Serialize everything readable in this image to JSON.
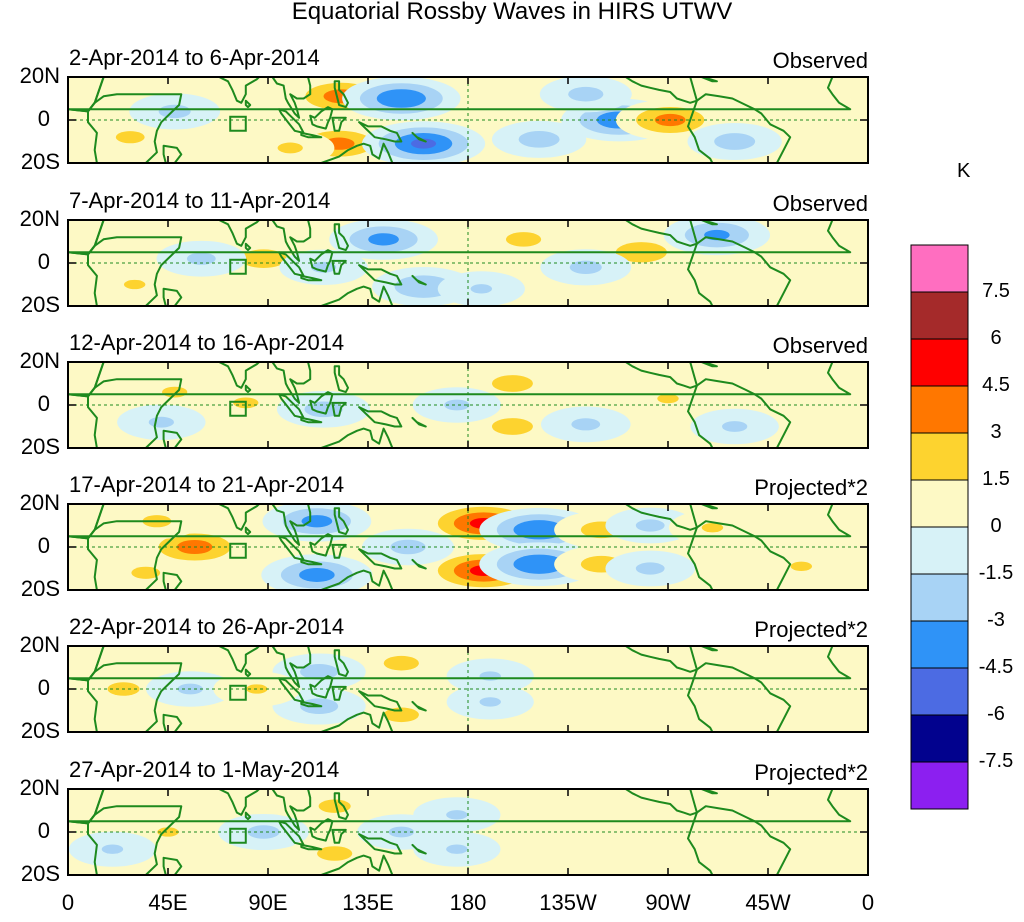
{
  "chart_data": {
    "type": "heatmap",
    "title": "Equatorial Rossby Waves in HIRS UTWV",
    "colorbar_unit": "K",
    "colorbar_levels": [
      "7.5",
      "6",
      "4.5",
      "3",
      "1.5",
      "0",
      "-1.5",
      "-3",
      "-4.5",
      "-6",
      "-7.5"
    ],
    "colorbar_colors": [
      "#ff6ec0",
      "#a52a2a",
      "#ff0000",
      "#ff7700",
      "#fdd32f",
      "#fdf9c5",
      "#d7f2f7",
      "#a8d3f5",
      "#2f93f7",
      "#4c6be3",
      "#02028e",
      "#8c1ff0"
    ],
    "lat_ticks": [
      "20N",
      "0",
      "20S"
    ],
    "lon_ticks": [
      "0",
      "45E",
      "90E",
      "135E",
      "180",
      "135W",
      "90W",
      "45W",
      "0"
    ],
    "lat_range": [
      -20,
      20
    ],
    "lon_range": [
      0,
      360
    ],
    "panels": [
      {
        "period": "2-Apr-2014 to 6-Apr-2014",
        "label": "Observed",
        "anomalies": [
          {
            "lon": 123,
            "lat": 11,
            "value": 3.6
          },
          {
            "lon": 122,
            "lat": -11,
            "value": 3.4
          },
          {
            "lon": 150,
            "lat": 10,
            "value": -4.2
          },
          {
            "lon": 160,
            "lat": -11,
            "value": -4.6
          },
          {
            "lon": 248,
            "lat": 0,
            "value": -4.0
          },
          {
            "lon": 271,
            "lat": 0,
            "value": 3.4
          },
          {
            "lon": 28,
            "lat": -8,
            "value": 1.8
          },
          {
            "lon": 100,
            "lat": -13,
            "value": 1.7
          },
          {
            "lon": 212,
            "lat": -9,
            "value": -2.2
          },
          {
            "lon": 233,
            "lat": 12,
            "value": -2.0
          },
          {
            "lon": 300,
            "lat": -10,
            "value": -2.2
          },
          {
            "lon": 48,
            "lat": 4,
            "value": -1.9
          }
        ]
      },
      {
        "period": "7-Apr-2014 to 11-Apr-2014",
        "label": "Observed",
        "anomalies": [
          {
            "lon": 88,
            "lat": 2,
            "value": 2.4
          },
          {
            "lon": 142,
            "lat": 11,
            "value": -3.4
          },
          {
            "lon": 160,
            "lat": -11,
            "value": -2.9
          },
          {
            "lon": 205,
            "lat": 11,
            "value": 2.0
          },
          {
            "lon": 258,
            "lat": 5,
            "value": 2.6
          },
          {
            "lon": 292,
            "lat": 13,
            "value": -3.2
          },
          {
            "lon": 60,
            "lat": 2,
            "value": -1.8
          },
          {
            "lon": 233,
            "lat": -2,
            "value": -1.9
          },
          {
            "lon": 30,
            "lat": -10,
            "value": 1.6
          },
          {
            "lon": 115,
            "lat": -2,
            "value": -1.7
          },
          {
            "lon": 186,
            "lat": -12,
            "value": -1.6
          }
        ]
      },
      {
        "period": "12-Apr-2014 to 16-Apr-2014",
        "label": "Observed",
        "anomalies": [
          {
            "lon": 80,
            "lat": 1,
            "value": 1.7
          },
          {
            "lon": 115,
            "lat": -2,
            "value": -2.1
          },
          {
            "lon": 200,
            "lat": 10,
            "value": 2.2
          },
          {
            "lon": 200,
            "lat": -10,
            "value": 2.2
          },
          {
            "lon": 233,
            "lat": -9,
            "value": -1.8
          },
          {
            "lon": 48,
            "lat": 6,
            "value": 1.7
          },
          {
            "lon": 42,
            "lat": -8,
            "value": -1.7
          },
          {
            "lon": 175,
            "lat": 0,
            "value": -1.7
          },
          {
            "lon": 270,
            "lat": 3,
            "value": 1.6
          },
          {
            "lon": 300,
            "lat": -10,
            "value": -1.7
          }
        ]
      },
      {
        "period": "17-Apr-2014 to 21-Apr-2014",
        "label": "Projected*2",
        "anomalies": [
          {
            "lon": 187,
            "lat": 11,
            "value": 4.7
          },
          {
            "lon": 187,
            "lat": -11,
            "value": 4.7
          },
          {
            "lon": 212,
            "lat": 8,
            "value": -4.3
          },
          {
            "lon": 212,
            "lat": -8,
            "value": -4.3
          },
          {
            "lon": 112,
            "lat": 12,
            "value": -3.4
          },
          {
            "lon": 112,
            "lat": -13,
            "value": -3.6
          },
          {
            "lon": 57,
            "lat": 0,
            "value": 3.6
          },
          {
            "lon": 240,
            "lat": 8,
            "value": 2.2
          },
          {
            "lon": 240,
            "lat": -8,
            "value": 2.2
          },
          {
            "lon": 262,
            "lat": 10,
            "value": -1.8
          },
          {
            "lon": 262,
            "lat": -10,
            "value": -1.8
          },
          {
            "lon": 40,
            "lat": 12,
            "value": 1.8
          },
          {
            "lon": 35,
            "lat": -12,
            "value": 1.8
          },
          {
            "lon": 153,
            "lat": 0,
            "value": -2.0
          },
          {
            "lon": 290,
            "lat": 9,
            "value": 1.6
          },
          {
            "lon": 330,
            "lat": -9,
            "value": 1.6
          }
        ]
      },
      {
        "period": "22-Apr-2014 to 26-Apr-2014",
        "label": "Projected*2",
        "anomalies": [
          {
            "lon": 150,
            "lat": 12,
            "value": 2.0
          },
          {
            "lon": 150,
            "lat": -12,
            "value": 2.0
          },
          {
            "lon": 113,
            "lat": 8,
            "value": -2.1
          },
          {
            "lon": 113,
            "lat": -8,
            "value": -2.1
          },
          {
            "lon": 25,
            "lat": 0,
            "value": 1.9
          },
          {
            "lon": 55,
            "lat": 0,
            "value": -1.7
          },
          {
            "lon": 190,
            "lat": 6,
            "value": -1.6
          },
          {
            "lon": 190,
            "lat": -6,
            "value": -1.6
          },
          {
            "lon": 85,
            "lat": 0,
            "value": 1.6
          }
        ]
      },
      {
        "period": "27-Apr-2014 to 1-May-2014",
        "label": "Projected*2",
        "anomalies": [
          {
            "lon": 88,
            "lat": 0,
            "value": -1.9
          },
          {
            "lon": 120,
            "lat": 12,
            "value": 1.9
          },
          {
            "lon": 120,
            "lat": -10,
            "value": 2.0
          },
          {
            "lon": 150,
            "lat": 0,
            "value": -1.7
          },
          {
            "lon": 45,
            "lat": 0,
            "value": 1.6
          },
          {
            "lon": 20,
            "lat": -8,
            "value": -1.6
          },
          {
            "lon": 175,
            "lat": 8,
            "value": -1.6
          },
          {
            "lon": 175,
            "lat": -8,
            "value": -1.6
          }
        ]
      }
    ]
  }
}
